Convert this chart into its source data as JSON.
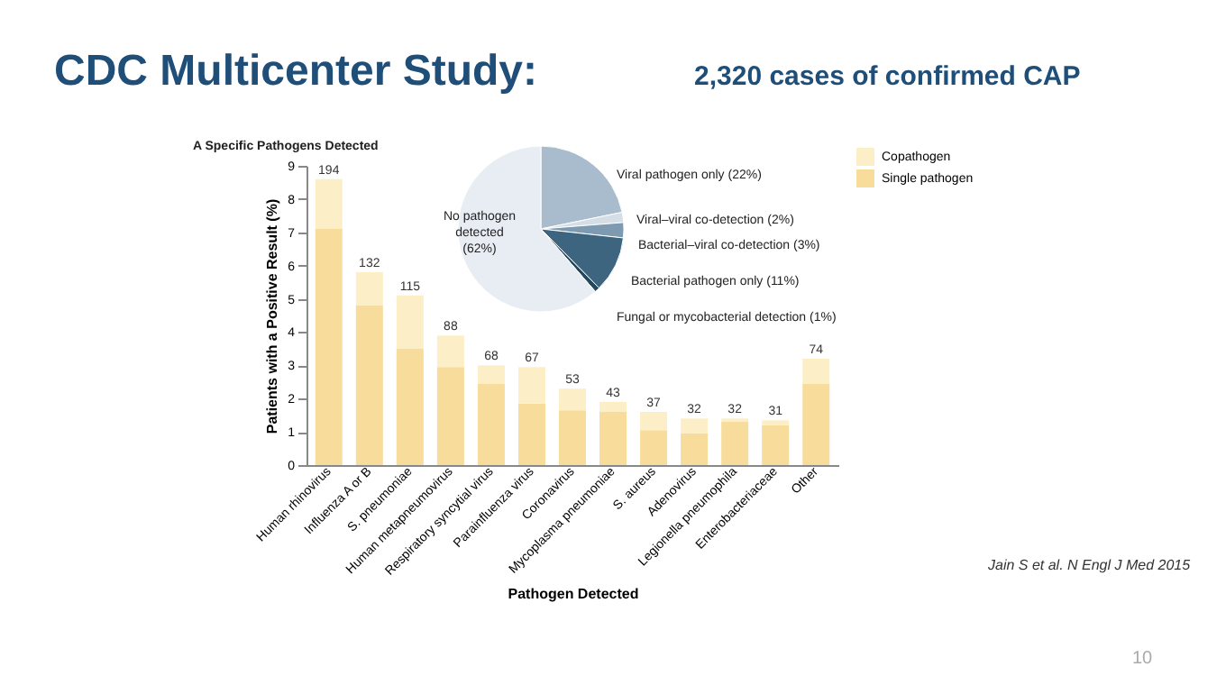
{
  "chart_data": [
    {
      "type": "bar",
      "title": "CDC Multicenter Study:",
      "subtitle": "2,320 cases of confirmed CAP",
      "xlabel": "Pathogen Detected",
      "ylabel": "Patients with a Positive Result (%)",
      "categories": [
        "Human rhinovirus",
        "Influenza A or B",
        "S. pneumoniae",
        "Human metapneumovirus",
        "Respiratory syncytial virus",
        "Parainfluenza virus",
        "Coronavirus",
        "Mycoplasma pneumoniae",
        "S. aureus",
        "Adenovirus",
        "Legionella pneumophila",
        "Enterobacteriaceae",
        "Other"
      ],
      "stacked": true,
      "series": [
        {
          "name": "Single pathogen",
          "color": "#f8dc9c",
          "values": [
            7.1,
            4.8,
            3.5,
            2.95,
            2.45,
            1.85,
            1.65,
            1.6,
            1.05,
            0.95,
            1.3,
            1.2,
            2.45
          ]
        },
        {
          "name": "Copathogen",
          "color": "#fcefc8",
          "values": [
            1.5,
            1.0,
            1.6,
            0.95,
            0.55,
            1.1,
            0.65,
            0.3,
            0.55,
            0.45,
            0.1,
            0.15,
            0.75
          ]
        }
      ],
      "ylim": [
        0,
        9
      ],
      "yticks": [
        0,
        1,
        2,
        3,
        4,
        5,
        6,
        7,
        8,
        9
      ],
      "grid": false,
      "legend": "top right",
      "annotations": [
        "A  Specific Pathogens Detected",
        "Jain S et al. N Engl J Med 2015",
        "10",
        {
          "text": "194",
          "x": "Human rhinovirus",
          "y": 8.6
        },
        {
          "text": "132",
          "x": "Influenza A or B",
          "y": 5.8
        },
        {
          "text": "115",
          "x": "S. pneumoniae",
          "y": 5.1
        },
        {
          "text": "88",
          "x": "Human metapneumovirus",
          "y": 3.9
        },
        {
          "text": "68",
          "x": "Respiratory syncytial virus",
          "y": 3.0
        },
        {
          "text": "67",
          "x": "Parainfluenza virus",
          "y": 2.95
        },
        {
          "text": "53",
          "x": "Coronavirus",
          "y": 2.3
        },
        {
          "text": "43",
          "x": "Mycoplasma pneumoniae",
          "y": 1.9
        },
        {
          "text": "37",
          "x": "S. aureus",
          "y": 1.6
        },
        {
          "text": "32",
          "x": "Adenovirus",
          "y": 1.4
        },
        {
          "text": "32",
          "x": "Legionella pneumophila",
          "y": 1.4
        },
        {
          "text": "31",
          "x": "Enterobacteriaceae",
          "y": 1.35
        },
        {
          "text": "74",
          "x": "Other",
          "y": 3.2
        }
      ]
    },
    {
      "type": "pie",
      "categories": [
        "Viral pathogen only (22%)",
        "Viral–viral co-detection (2%)",
        "Bacterial–viral co-detection (3%)",
        "Bacterial pathogen only (11%)",
        "Fungal or mycobacterial detection (1%)",
        "No pathogen\ndetected\n(62%)"
      ],
      "values": [
        22,
        2,
        3,
        11,
        1,
        62
      ],
      "colors": [
        "#a9bccd",
        "#d5dde6",
        "#7e9ab0",
        "#3d6580",
        "#24475e",
        "#e8edf4"
      ]
    }
  ]
}
